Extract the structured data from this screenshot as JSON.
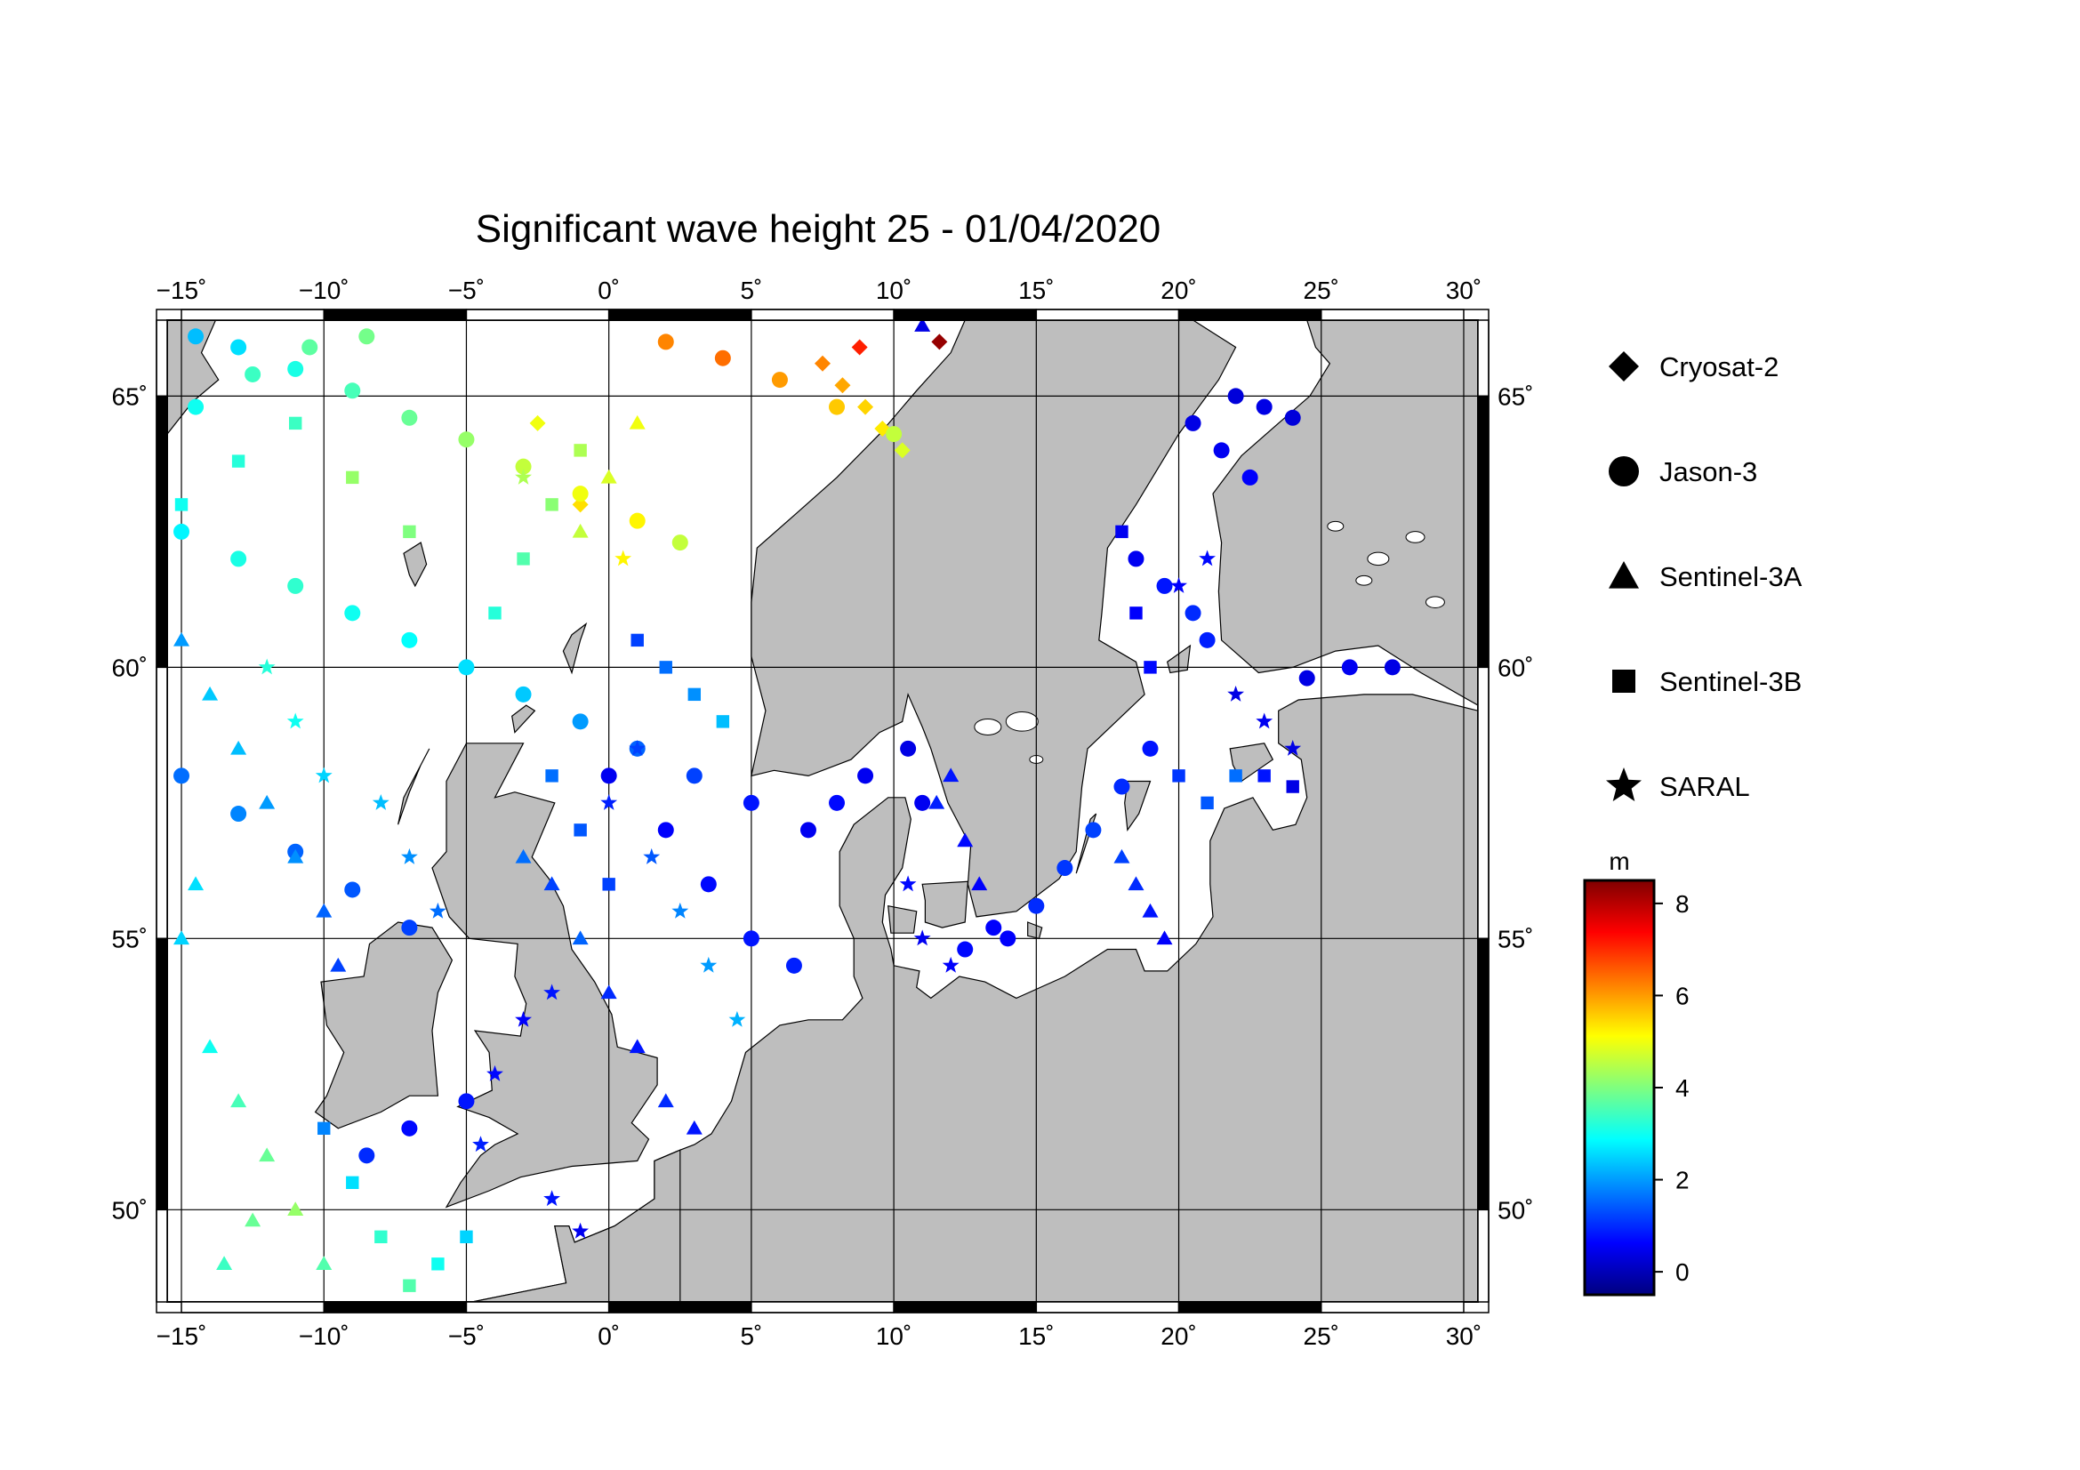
{
  "title": "Significant wave height 25 - 01/04/2020",
  "map": {
    "lon_ticks": [
      {
        "value": -15,
        "label": "−15˚"
      },
      {
        "value": -10,
        "label": "−10˚"
      },
      {
        "value": -5,
        "label": "−5˚"
      },
      {
        "value": 0,
        "label": "0˚"
      },
      {
        "value": 5,
        "label": "5˚"
      },
      {
        "value": 10,
        "label": "10˚"
      },
      {
        "value": 15,
        "label": "15˚"
      },
      {
        "value": 20,
        "label": "20˚"
      },
      {
        "value": 25,
        "label": "25˚"
      },
      {
        "value": 30,
        "label": "30˚"
      }
    ],
    "lat_ticks": [
      {
        "value": 65,
        "label": "65˚"
      },
      {
        "value": 60,
        "label": "60˚"
      },
      {
        "value": 55,
        "label": "55˚"
      },
      {
        "value": 50,
        "label": "50˚"
      }
    ],
    "land_color": "#bebebe",
    "sea_color": "#ffffff"
  },
  "legend": {
    "items": [
      {
        "label": "Cryosat-2",
        "marker": "diamond"
      },
      {
        "label": "Jason-3",
        "marker": "circle"
      },
      {
        "label": "Sentinel-3A",
        "marker": "triangle"
      },
      {
        "label": "Sentinel-3B",
        "marker": "square"
      },
      {
        "label": "SARAL",
        "marker": "star"
      }
    ]
  },
  "colorbar": {
    "unit": "m",
    "ticks": [
      {
        "value": 8,
        "label": "8"
      },
      {
        "value": 6,
        "label": "6"
      },
      {
        "value": 4,
        "label": "4"
      },
      {
        "value": 2,
        "label": "2"
      },
      {
        "value": 0,
        "label": "0"
      }
    ],
    "range": [
      -0.5,
      8.5
    ],
    "colormap": [
      "#00007f",
      "#0000ff",
      "#007fff",
      "#00ffff",
      "#7fff7f",
      "#ffff00",
      "#ff7f00",
      "#ff0000",
      "#7f0000"
    ]
  },
  "chart_data": {
    "type": "scatter",
    "title": "Significant wave height 25 - 01/04/2020",
    "xlabel": "",
    "ylabel": "",
    "xlim": [
      -15.5,
      30.5
    ],
    "ylim": [
      48.3,
      66.4
    ],
    "value_unit": "m",
    "series": [
      {
        "name": "Cryosat-2",
        "marker": "diamond",
        "points": [
          [
            7.5,
            65.6,
            6.2
          ],
          [
            8.2,
            65.2,
            5.9
          ],
          [
            9.0,
            64.8,
            5.5
          ],
          [
            9.6,
            64.4,
            5.3
          ],
          [
            10.3,
            64.0,
            4.8
          ],
          [
            -2.5,
            64.5,
            5.0
          ],
          [
            -1.0,
            63.0,
            5.4
          ],
          [
            11.6,
            66.0,
            8.3
          ],
          [
            8.8,
            65.9,
            7.1
          ]
        ]
      },
      {
        "name": "Jason-3",
        "marker": "circle",
        "points": [
          [
            -14.5,
            66.1,
            2.3
          ],
          [
            -13,
            65.9,
            2.6
          ],
          [
            -11,
            65.5,
            3.1
          ],
          [
            -9,
            65.1,
            3.5
          ],
          [
            -7,
            64.6,
            3.8
          ],
          [
            -5,
            64.2,
            4.2
          ],
          [
            -3,
            63.7,
            4.6
          ],
          [
            -1,
            63.2,
            5.0
          ],
          [
            1,
            62.7,
            5.2
          ],
          [
            2.5,
            62.3,
            4.6
          ],
          [
            -14.5,
            64.8,
            3.0
          ],
          [
            -12.5,
            65.4,
            3.4
          ],
          [
            -10.5,
            65.9,
            3.7
          ],
          [
            -8.5,
            66.1,
            3.9
          ],
          [
            2,
            66.0,
            6.2
          ],
          [
            4,
            65.7,
            6.4
          ],
          [
            6,
            65.3,
            6.0
          ],
          [
            8,
            64.8,
            5.6
          ],
          [
            10,
            64.3,
            4.6
          ],
          [
            -15,
            62.5,
            2.8
          ],
          [
            -13,
            62.0,
            3.1
          ],
          [
            -11,
            61.5,
            3.3
          ],
          [
            -9,
            61.0,
            3.0
          ],
          [
            -7,
            60.5,
            2.9
          ],
          [
            -5,
            60.0,
            2.6
          ],
          [
            -3,
            59.5,
            2.4
          ],
          [
            -1,
            59.0,
            2.0
          ],
          [
            1,
            58.5,
            1.5
          ],
          [
            3,
            58.0,
            1.2
          ],
          [
            5,
            57.5,
            0.8
          ],
          [
            7,
            57.0,
            0.5
          ],
          [
            -15,
            58.0,
            1.6
          ],
          [
            -13,
            57.3,
            1.8
          ],
          [
            -11,
            56.6,
            1.5
          ],
          [
            -9,
            55.9,
            1.4
          ],
          [
            -7,
            55.2,
            1.2
          ],
          [
            -5,
            52.0,
            0.8
          ],
          [
            -7,
            51.5,
            0.7
          ],
          [
            -8.5,
            51.0,
            1.0
          ],
          [
            0,
            58.0,
            0.5
          ],
          [
            2,
            57.0,
            0.6
          ],
          [
            3.5,
            56.0,
            0.7
          ],
          [
            5,
            55.0,
            0.8
          ],
          [
            6.5,
            54.5,
            0.9
          ],
          [
            8,
            57.5,
            0.7
          ],
          [
            9,
            58.0,
            0.5
          ],
          [
            10.5,
            58.5,
            0.4
          ],
          [
            11,
            57.5,
            0.5
          ],
          [
            20.5,
            64.5,
            0.4
          ],
          [
            21.5,
            64.0,
            0.5
          ],
          [
            22.5,
            63.5,
            0.6
          ],
          [
            22,
            65.0,
            0.3
          ],
          [
            23,
            64.8,
            0.4
          ],
          [
            24,
            64.6,
            0.3
          ],
          [
            18.5,
            62.0,
            0.5
          ],
          [
            19.5,
            61.5,
            0.8
          ],
          [
            20.5,
            61.0,
            1.0
          ],
          [
            21,
            60.5,
            0.9
          ],
          [
            19,
            58.5,
            0.8
          ],
          [
            18,
            57.8,
            1.0
          ],
          [
            17,
            57.0,
            1.2
          ],
          [
            16,
            56.3,
            1.1
          ],
          [
            15,
            55.6,
            1.0
          ],
          [
            14,
            55.0,
            0.6
          ],
          [
            24.5,
            59.8,
            0.4
          ],
          [
            26,
            60.0,
            0.5
          ],
          [
            27.5,
            60.0,
            0.4
          ],
          [
            13.5,
            55.2,
            0.6
          ],
          [
            12.5,
            54.8,
            0.7
          ]
        ]
      },
      {
        "name": "Sentinel-3A",
        "marker": "triangle",
        "points": [
          [
            -15,
            60.5,
            2.0
          ],
          [
            -14,
            59.5,
            2.4
          ],
          [
            -13,
            58.5,
            2.3
          ],
          [
            -12,
            57.5,
            2.0
          ],
          [
            -11,
            56.5,
            1.9
          ],
          [
            -10,
            55.5,
            1.5
          ],
          [
            -9.5,
            54.5,
            1.2
          ],
          [
            -14,
            53.0,
            3.0
          ],
          [
            -13,
            52.0,
            3.5
          ],
          [
            -12,
            51.0,
            3.8
          ],
          [
            -11,
            50.0,
            4.2
          ],
          [
            -10,
            49.0,
            3.6
          ],
          [
            -13.5,
            49.0,
            3.4
          ],
          [
            -12.5,
            49.8,
            3.8
          ],
          [
            -15,
            55.0,
            2.5
          ],
          [
            -14.5,
            56.0,
            2.6
          ],
          [
            -3,
            56.5,
            1.6
          ],
          [
            -2,
            56.0,
            1.2
          ],
          [
            -1,
            55.0,
            1.5
          ],
          [
            0,
            54.0,
            1.0
          ],
          [
            1,
            53.0,
            0.8
          ],
          [
            2,
            52.0,
            1.0
          ],
          [
            3,
            51.5,
            0.8
          ],
          [
            18,
            56.5,
            1.2
          ],
          [
            18.5,
            56.0,
            1.0
          ],
          [
            19,
            55.5,
            0.8
          ],
          [
            19.5,
            55.0,
            0.6
          ],
          [
            12,
            58.0,
            0.8
          ],
          [
            11.5,
            57.5,
            0.9
          ],
          [
            12.5,
            56.8,
            0.7
          ],
          [
            13,
            56.0,
            0.6
          ],
          [
            11,
            66.3,
            0.4
          ],
          [
            -1,
            62.5,
            4.6
          ],
          [
            0,
            63.5,
            4.8
          ],
          [
            1,
            64.5,
            5.0
          ]
        ]
      },
      {
        "name": "Sentinel-3B",
        "marker": "square",
        "points": [
          [
            -5,
            49.5,
            2.5
          ],
          [
            -6,
            49.0,
            3.0
          ],
          [
            -7,
            48.6,
            3.6
          ],
          [
            -8,
            49.5,
            3.3
          ],
          [
            -9,
            50.5,
            2.6
          ],
          [
            -10,
            51.5,
            1.8
          ],
          [
            -2,
            58.0,
            1.6
          ],
          [
            -1,
            57.0,
            1.4
          ],
          [
            0,
            56.0,
            1.2
          ],
          [
            1,
            60.5,
            1.2
          ],
          [
            2,
            60.0,
            1.6
          ],
          [
            3,
            59.5,
            1.9
          ],
          [
            4,
            59.0,
            2.3
          ],
          [
            -4,
            61.0,
            3.2
          ],
          [
            -3,
            62.0,
            3.6
          ],
          [
            -2,
            63.0,
            4.1
          ],
          [
            -1,
            64.0,
            4.4
          ],
          [
            18,
            62.5,
            0.5
          ],
          [
            18.5,
            61.0,
            0.6
          ],
          [
            19,
            60.0,
            0.7
          ],
          [
            20,
            58.0,
            1.1
          ],
          [
            21,
            57.5,
            1.4
          ],
          [
            22,
            58.0,
            1.6
          ],
          [
            23,
            58.0,
            0.8
          ],
          [
            24,
            57.8,
            0.4
          ],
          [
            -15,
            63.0,
            3.0
          ],
          [
            -13,
            63.8,
            3.2
          ],
          [
            -11,
            64.5,
            3.4
          ],
          [
            -9,
            63.5,
            4.2
          ],
          [
            -7,
            62.5,
            4.0
          ]
        ]
      },
      {
        "name": "SARAL",
        "marker": "star",
        "points": [
          [
            -4,
            52.5,
            0.7
          ],
          [
            -3,
            53.5,
            0.6
          ],
          [
            -2,
            54.0,
            0.8
          ],
          [
            -4.5,
            51.2,
            0.9
          ],
          [
            -6,
            55.5,
            1.6
          ],
          [
            -7,
            56.5,
            1.9
          ],
          [
            -8,
            57.5,
            2.3
          ],
          [
            0,
            57.5,
            0.9
          ],
          [
            1,
            58.5,
            1.2
          ],
          [
            1.5,
            56.5,
            1.4
          ],
          [
            2.5,
            55.5,
            1.8
          ],
          [
            3.5,
            54.5,
            2.0
          ],
          [
            4.5,
            53.5,
            2.2
          ],
          [
            11,
            55.0,
            0.5
          ],
          [
            12,
            54.5,
            0.6
          ],
          [
            10.5,
            56.0,
            0.7
          ],
          [
            22,
            59.5,
            0.4
          ],
          [
            23,
            59.0,
            0.5
          ],
          [
            24,
            58.5,
            0.4
          ],
          [
            20,
            61.5,
            0.6
          ],
          [
            21,
            62.0,
            0.7
          ],
          [
            -1,
            49.6,
            0.5
          ],
          [
            -2,
            50.2,
            0.8
          ],
          [
            -12,
            60.0,
            3.2
          ],
          [
            -11,
            59.0,
            3.0
          ],
          [
            -10,
            58.0,
            2.5
          ],
          [
            0.5,
            62.0,
            5.2
          ],
          [
            -3,
            63.5,
            4.4
          ]
        ]
      }
    ]
  }
}
